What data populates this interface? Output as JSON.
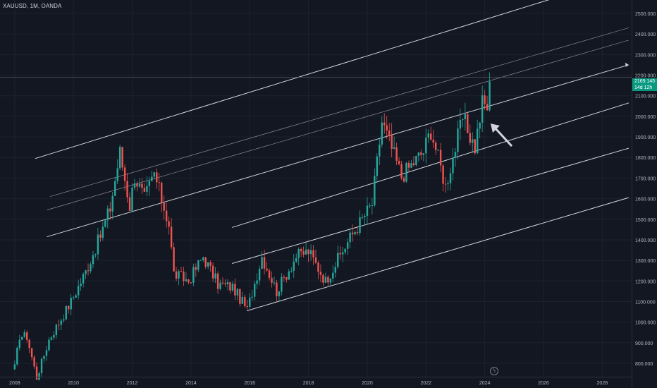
{
  "header": {
    "symbol_line": "XAUUSD, 1M, OANDA"
  },
  "last_price": {
    "value": "2169.145",
    "countdown": "14d 12h"
  },
  "colors": {
    "background": "#131722",
    "up": "#26a69a",
    "down": "#ef5350",
    "line": "#d1d4dc",
    "badge": "#089981"
  },
  "icons": {
    "replay": "lightning-circle-icon"
  },
  "chart_data": {
    "type": "candlestick",
    "title": "XAUUSD, 1M, OANDA",
    "xlabel": "",
    "ylabel": "",
    "x_ticks": [
      "2008",
      "2010",
      "2012",
      "2014",
      "2016",
      "2018",
      "2020",
      "2022",
      "2024",
      "2026",
      "2028"
    ],
    "y_ticks": [
      "800.000",
      "900.000",
      "1000.000",
      "1100.000",
      "1200.000",
      "1300.000",
      "1400.000",
      "1500.000",
      "1600.000",
      "1700.000",
      "1800.000",
      "1900.000",
      "2000.000",
      "2100.000",
      "2200.000",
      "2300.000",
      "2400.000",
      "2500.000"
    ],
    "xlim": [
      2007.5,
      2029.0
    ],
    "ylim": [
      735,
      2565
    ],
    "grid": true,
    "series": [
      {
        "type": "candlestick",
        "approximate_monthly_close": [
          {
            "x": "2008-01",
            "close": 780
          },
          {
            "x": "2008-03",
            "close": 935
          },
          {
            "x": "2008-06",
            "close": 930
          },
          {
            "x": "2008-10",
            "close": 730
          },
          {
            "x": "2009-03",
            "close": 915
          },
          {
            "x": "2009-12",
            "close": 1100
          },
          {
            "x": "2010-06",
            "close": 1245
          },
          {
            "x": "2010-12",
            "close": 1420
          },
          {
            "x": "2011-04",
            "close": 1555
          },
          {
            "x": "2011-08",
            "close": 1825
          },
          {
            "x": "2011-12",
            "close": 1565
          },
          {
            "x": "2012-02",
            "close": 1710
          },
          {
            "x": "2012-06",
            "close": 1600
          },
          {
            "x": "2012-10",
            "close": 1720
          },
          {
            "x": "2013-04",
            "close": 1475
          },
          {
            "x": "2013-06",
            "close": 1235
          },
          {
            "x": "2013-12",
            "close": 1200
          },
          {
            "x": "2014-06",
            "close": 1320
          },
          {
            "x": "2014-12",
            "close": 1185
          },
          {
            "x": "2015-06",
            "close": 1170
          },
          {
            "x": "2015-12",
            "close": 1060
          },
          {
            "x": "2016-06",
            "close": 1320
          },
          {
            "x": "2016-12",
            "close": 1150
          },
          {
            "x": "2017-08",
            "close": 1320
          },
          {
            "x": "2018-01",
            "close": 1345
          },
          {
            "x": "2018-08",
            "close": 1200
          },
          {
            "x": "2019-06",
            "close": 1410
          },
          {
            "x": "2019-12",
            "close": 1520
          },
          {
            "x": "2020-03",
            "close": 1575
          },
          {
            "x": "2020-07",
            "close": 1975
          },
          {
            "x": "2021-03",
            "close": 1710
          },
          {
            "x": "2021-12",
            "close": 1830
          },
          {
            "x": "2022-03",
            "close": 1935
          },
          {
            "x": "2022-09",
            "close": 1660
          },
          {
            "x": "2023-04",
            "close": 1990
          },
          {
            "x": "2023-09",
            "close": 1850
          },
          {
            "x": "2023-12",
            "close": 2065
          },
          {
            "x": "2024-02",
            "close": 2045
          },
          {
            "x": "2024-03",
            "close": 2169.145
          }
        ]
      }
    ],
    "trendlines": [
      {
        "name": "upper channel",
        "from": {
          "x": 2008.7,
          "y": 1795
        },
        "to": {
          "x": 2026.5,
          "y": 2580
        }
      },
      {
        "name": "upper-mid faint",
        "from": {
          "x": 2009.2,
          "y": 1610
        },
        "to": {
          "x": 2028.9,
          "y": 2430
        }
      },
      {
        "name": "upper-mid faint 2",
        "from": {
          "x": 2009.1,
          "y": 1545
        },
        "to": {
          "x": 2028.9,
          "y": 2370
        }
      },
      {
        "name": "horizontal",
        "from": {
          "x": 2007.5,
          "y": 2190
        },
        "to": {
          "x": 2029.0,
          "y": 2190
        }
      },
      {
        "name": "channel line 1",
        "from": {
          "x": 2009.1,
          "y": 1415
        },
        "to": {
          "x": 2028.9,
          "y": 2250
        }
      },
      {
        "name": "channel line 2",
        "from": {
          "x": 2015.4,
          "y": 1460
        },
        "to": {
          "x": 2028.9,
          "y": 2065
        }
      },
      {
        "name": "channel line 3",
        "from": {
          "x": 2015.4,
          "y": 1285
        },
        "to": {
          "x": 2028.9,
          "y": 1845
        }
      },
      {
        "name": "lower channel",
        "from": {
          "x": 2015.9,
          "y": 1055
        },
        "to": {
          "x": 2028.9,
          "y": 1605
        }
      }
    ],
    "annotations": [
      {
        "type": "arrow",
        "pointing_to": {
          "x": 2024.2,
          "y": 1965
        }
      }
    ]
  }
}
